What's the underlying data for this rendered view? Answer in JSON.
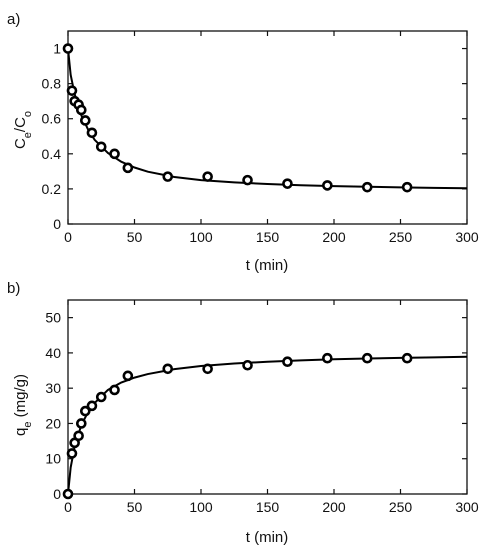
{
  "chart_data": [
    {
      "panel_label": "a)",
      "type": "scatter",
      "ylabel_base": "C",
      "ylabel_sub1": "e",
      "ylabel_mid": "/C",
      "ylabel_sub2": "o",
      "xlabel": "t (min)",
      "xlim": [
        0,
        300
      ],
      "ylim": [
        0,
        1.1
      ],
      "xticks": [
        0,
        50,
        100,
        150,
        200,
        250,
        300
      ],
      "yticks": [
        0,
        0.2,
        0.4,
        0.6,
        0.8,
        1
      ],
      "grid": false,
      "series": [
        {
          "kind": "points",
          "x": [
            0,
            3,
            5,
            8,
            10,
            13,
            18,
            25,
            35,
            45,
            75,
            105,
            135,
            165,
            195,
            225,
            255
          ],
          "y": [
            1.0,
            0.76,
            0.7,
            0.68,
            0.65,
            0.59,
            0.52,
            0.44,
            0.4,
            0.32,
            0.27,
            0.27,
            0.25,
            0.23,
            0.22,
            0.21,
            0.21
          ]
        },
        {
          "kind": "fit-curve",
          "x": [
            0,
            2,
            5,
            10,
            15,
            20,
            30,
            40,
            50,
            60,
            80,
            100,
            125,
            150,
            175,
            200,
            225,
            250,
            275,
            300
          ],
          "y": [
            1.0,
            0.85,
            0.74,
            0.62,
            0.54,
            0.48,
            0.405,
            0.355,
            0.322,
            0.298,
            0.268,
            0.25,
            0.237,
            0.228,
            0.221,
            0.216,
            0.212,
            0.209,
            0.206,
            0.204
          ]
        }
      ]
    },
    {
      "panel_label": "b)",
      "type": "scatter",
      "ylabel_base": "q",
      "ylabel_sub1": "e",
      "ylabel_rest": " (mg/g)",
      "xlabel": "t (min)",
      "xlim": [
        0,
        300
      ],
      "ylim": [
        0,
        55
      ],
      "xticks": [
        0,
        50,
        100,
        150,
        200,
        250,
        300
      ],
      "yticks": [
        0,
        10,
        20,
        30,
        40,
        50
      ],
      "grid": false,
      "series": [
        {
          "kind": "points",
          "x": [
            0,
            3,
            5,
            8,
            10,
            13,
            18,
            25,
            35,
            45,
            75,
            105,
            135,
            165,
            195,
            225,
            255
          ],
          "y": [
            0,
            11.5,
            14.5,
            16.5,
            20,
            23.5,
            25,
            27.5,
            29.5,
            33.5,
            35.5,
            35.5,
            36.5,
            37.5,
            38.5,
            38.5,
            38.5
          ]
        },
        {
          "kind": "fit-curve",
          "x": [
            0,
            2,
            5,
            10,
            15,
            20,
            30,
            40,
            50,
            60,
            80,
            100,
            125,
            150,
            175,
            200,
            225,
            250,
            275,
            300
          ],
          "y": [
            0,
            7.5,
            13.5,
            19.5,
            23.2,
            25.8,
            29.5,
            31.6,
            33.0,
            34.0,
            35.4,
            36.3,
            37.0,
            37.5,
            37.9,
            38.2,
            38.4,
            38.6,
            38.75,
            38.9
          ]
        }
      ]
    }
  ]
}
